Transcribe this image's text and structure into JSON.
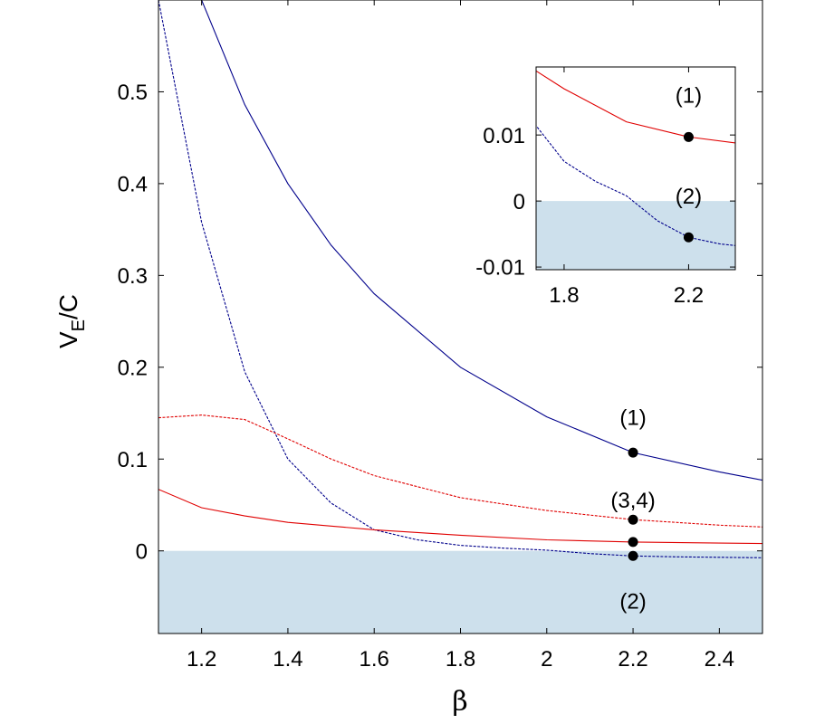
{
  "chart_data": {
    "type": "line",
    "xlabel": "β",
    "ylabel_main": "V",
    "ylabel_sub": "E",
    "ylabel_tail": "/C",
    "xlim": [
      1.1,
      2.5
    ],
    "ylim": [
      -0.09,
      0.6
    ],
    "xticks": [
      1.2,
      1.4,
      1.6,
      1.8,
      2,
      2.2,
      2.4
    ],
    "xtick_labels": [
      "1.2",
      "1.4",
      "1.6",
      "1.8",
      "2",
      "2.2",
      "2.4"
    ],
    "yticks": [
      0,
      0.1,
      0.2,
      0.3,
      0.4,
      0.5
    ],
    "ytick_labels": [
      "0",
      "0.1",
      "0.2",
      "0.3",
      "0.4",
      "0.5"
    ],
    "shaded_region": "y < 0",
    "shade_color": "#cde0ec",
    "series": [
      {
        "name": "(1)",
        "color": "#00008b",
        "style": "solid",
        "x": [
          1.1,
          1.2,
          1.3,
          1.4,
          1.5,
          1.6,
          1.8,
          2.0,
          2.2,
          2.4,
          2.5
        ],
        "y": [
          0.75,
          0.6,
          0.486,
          0.4,
          0.333,
          0.28,
          0.2,
          0.146,
          0.107,
          0.086,
          0.077
        ]
      },
      {
        "name": "(2)",
        "color": "#00008b",
        "style": "dashed",
        "x": [
          1.1,
          1.2,
          1.3,
          1.4,
          1.5,
          1.6,
          1.7,
          1.8,
          1.9,
          2.0,
          2.1,
          2.2,
          2.3,
          2.4,
          2.5
        ],
        "y": [
          0.6,
          0.358,
          0.195,
          0.1,
          0.052,
          0.023,
          0.012,
          0.006,
          0.003,
          0.0008,
          -0.003,
          -0.0055,
          -0.0065,
          -0.007,
          -0.0075
        ]
      },
      {
        "name": "(3,4) dashed",
        "color": "#e00000",
        "style": "dashed",
        "x": [
          1.1,
          1.2,
          1.3,
          1.4,
          1.5,
          1.6,
          1.8,
          2.0,
          2.2,
          2.4,
          2.5
        ],
        "y": [
          0.145,
          0.148,
          0.143,
          0.122,
          0.1,
          0.082,
          0.058,
          0.044,
          0.034,
          0.028,
          0.026
        ]
      },
      {
        "name": "(3,4) solid",
        "color": "#e00000",
        "style": "solid",
        "x": [
          1.1,
          1.2,
          1.3,
          1.4,
          1.5,
          1.6,
          1.8,
          2.0,
          2.2,
          2.4,
          2.5
        ],
        "y": [
          0.067,
          0.047,
          0.038,
          0.031,
          0.027,
          0.023,
          0.017,
          0.012,
          0.0097,
          0.0085,
          0.008
        ]
      }
    ],
    "points": [
      {
        "x": 2.2,
        "y": 0.107
      },
      {
        "x": 2.2,
        "y": 0.034
      },
      {
        "x": 2.2,
        "y": 0.0097
      },
      {
        "x": 2.2,
        "y": -0.0055
      }
    ],
    "annotations": [
      {
        "text": "(1)",
        "x": 2.2,
        "y": 0.145
      },
      {
        "text": "(3,4)",
        "x": 2.2,
        "y": 0.055
      },
      {
        "text": "(2)",
        "x": 2.2,
        "y": -0.055
      }
    ],
    "inset": {
      "xlim": [
        1.71,
        2.35
      ],
      "ylim": [
        -0.0104,
        0.0203
      ],
      "xticks": [
        1.8,
        2.2
      ],
      "xtick_labels": [
        "1.8",
        "2.2"
      ],
      "yticks": [
        -0.01,
        0,
        0.01
      ],
      "ytick_labels": [
        "-0.01",
        "0",
        "0.01"
      ],
      "points": [
        {
          "x": 2.2,
          "y": 0.0097
        },
        {
          "x": 2.2,
          "y": -0.0055
        }
      ],
      "annotations": [
        {
          "text": "(1)",
          "x": 2.2,
          "y": 0.016
        },
        {
          "text": "(2)",
          "x": 2.2,
          "y": 0.0007
        }
      ]
    }
  }
}
